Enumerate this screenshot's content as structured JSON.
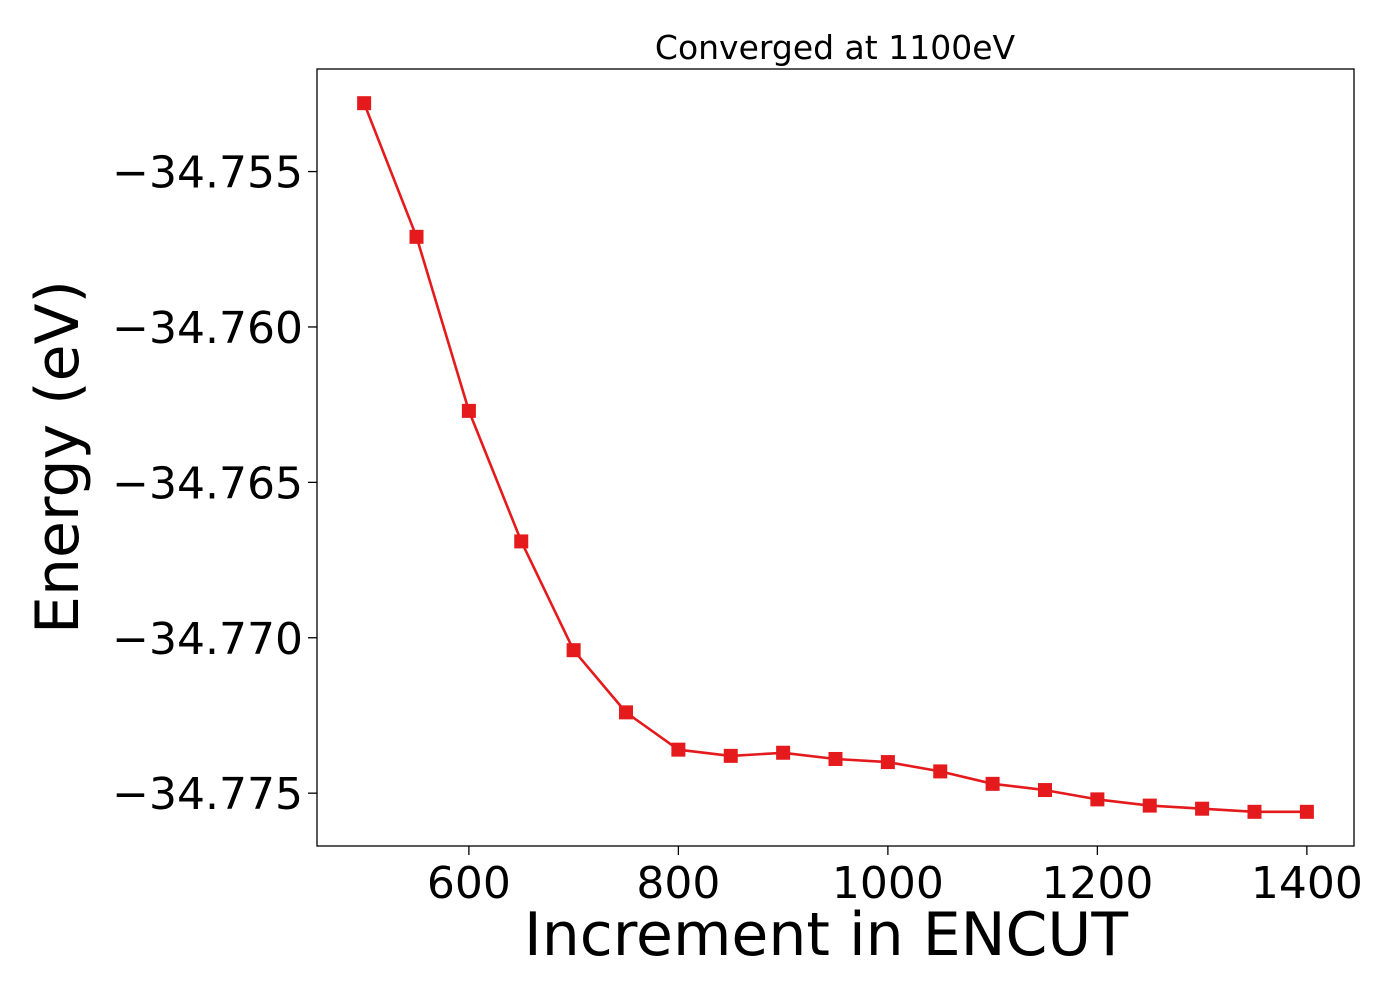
{
  "chart_data": {
    "type": "line",
    "title": "Converged at 1100eV",
    "xlabel": "Increment in ENCUT",
    "ylabel": "Energy (eV)",
    "xlim": [
      455,
      1445
    ],
    "ylim": [
      -34.7767,
      -34.7517
    ],
    "xticks": [
      600,
      800,
      1000,
      1200,
      1400
    ],
    "xtick_labels": [
      "600",
      "800",
      "1000",
      "1200",
      "1400"
    ],
    "yticks": [
      -34.755,
      -34.76,
      -34.765,
      -34.77,
      -34.775
    ],
    "ytick_labels": [
      "−34.755",
      "−34.760",
      "−34.765",
      "−34.770",
      "−34.775"
    ],
    "grid": false,
    "legend": false,
    "series": [
      {
        "color": "#e41a1c",
        "marker": "square",
        "x": [
          500,
          550,
          600,
          650,
          700,
          750,
          800,
          850,
          900,
          950,
          1000,
          1050,
          1100,
          1150,
          1200,
          1250,
          1300,
          1350,
          1400
        ],
        "y": [
          -34.7528,
          -34.7571,
          -34.7627,
          -34.7669,
          -34.7704,
          -34.7724,
          -34.7736,
          -34.7738,
          -34.7737,
          -34.7739,
          -34.774,
          -34.7743,
          -34.7747,
          -34.7749,
          -34.7752,
          -34.7754,
          -34.7755,
          -34.7756,
          -34.7756
        ]
      }
    ]
  }
}
